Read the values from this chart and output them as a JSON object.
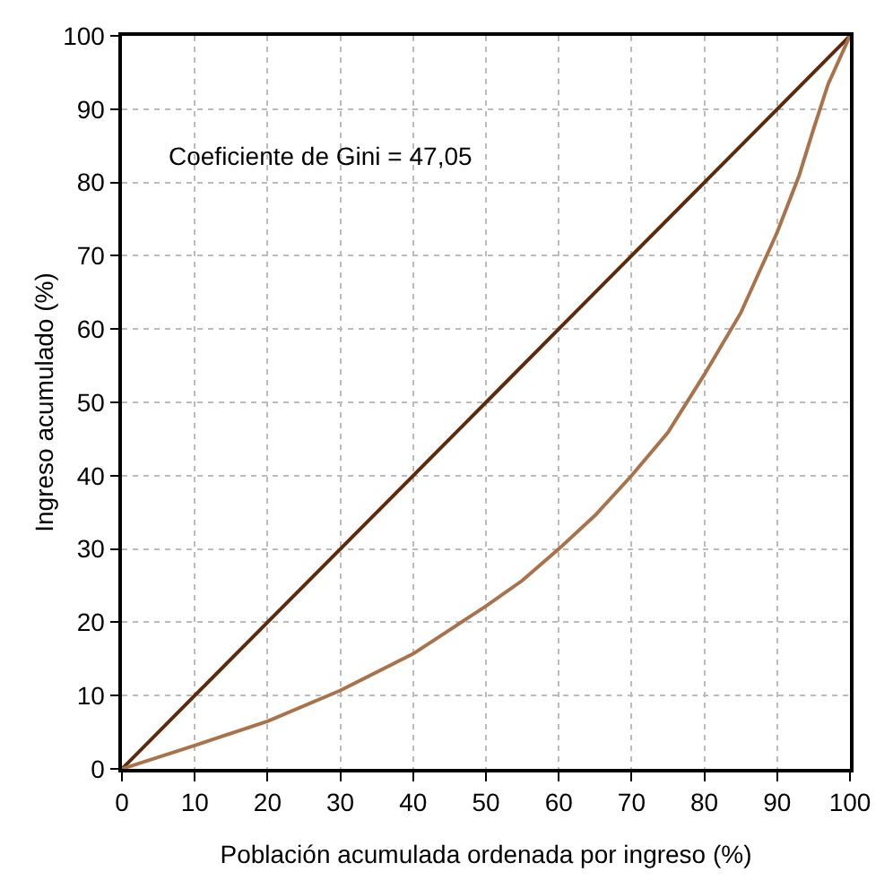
{
  "chart_data": {
    "type": "line",
    "xlabel": "Población acumulada ordenada por ingreso (%)",
    "ylabel": "Ingreso acumulado (%)",
    "annotations": [
      "Coeficiente de Gini = 47,05"
    ],
    "series": [
      {
        "color": "#5c2a0c",
        "x": [
          0,
          10,
          20,
          30,
          40,
          50,
          60,
          70,
          80,
          90,
          100
        ],
        "values": [
          0,
          10,
          20,
          30,
          40,
          50,
          60,
          70,
          80,
          90,
          100
        ]
      },
      {
        "color": "#a8724a",
        "x": [
          0,
          10,
          20,
          30,
          40,
          50,
          55,
          60,
          65,
          70,
          75,
          80,
          85,
          90,
          93,
          95,
          97,
          100
        ],
        "values": [
          0,
          3.2,
          6.5,
          10.7,
          15.7,
          22.2,
          25.7,
          30,
          34.6,
          40,
          45.9,
          53.8,
          62.2,
          73.2,
          80.9,
          87.3,
          93.4,
          100
        ]
      }
    ],
    "xlim": [
      0,
      100
    ],
    "ylim": [
      0,
      100
    ],
    "xticks": [
      0,
      10,
      20,
      30,
      40,
      50,
      60,
      70,
      80,
      90,
      100
    ],
    "yticks": [
      0,
      10,
      20,
      30,
      40,
      50,
      60,
      70,
      80,
      90,
      100
    ],
    "grid": true,
    "marker": "none",
    "line_style": "solid"
  }
}
